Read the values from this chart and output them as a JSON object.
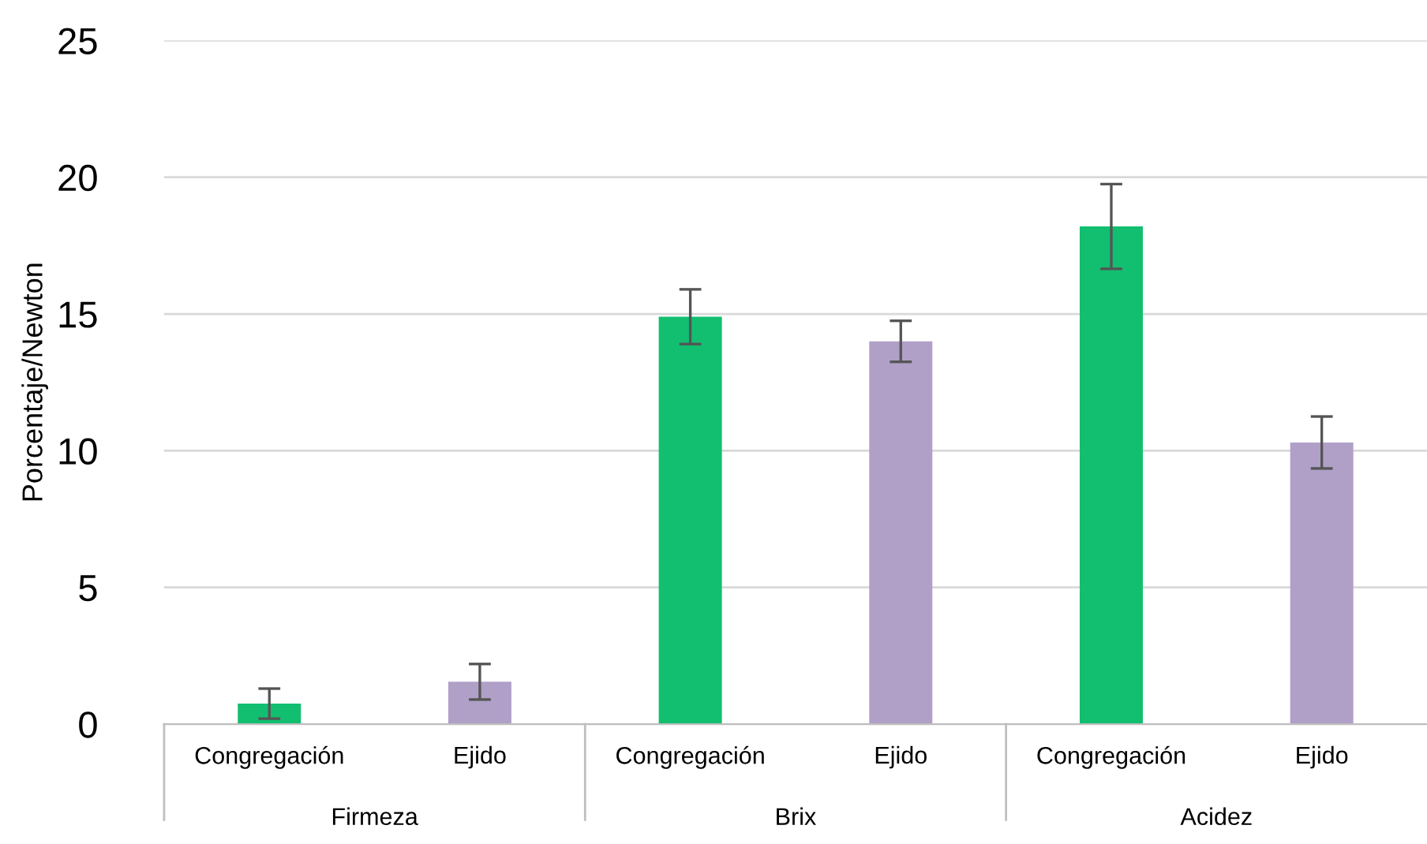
{
  "chart_data": {
    "type": "bar",
    "ylabel": "Porcentaje/Newton",
    "categories": [
      "Congregación",
      "Ejido",
      "Congregación",
      "Ejido",
      "Congregación",
      "Ejido"
    ],
    "values": [
      0.75,
      1.55,
      14.9,
      14.0,
      18.2,
      10.3
    ],
    "errors": [
      0.55,
      0.65,
      1.0,
      0.75,
      1.55,
      0.95
    ],
    "colors": [
      "#12bf70",
      "#b0a0c8",
      "#12bf70",
      "#b0a0c8",
      "#12bf70",
      "#b0a0c8"
    ],
    "annotations": [
      "Firmeza",
      "Brix",
      "Acidez"
    ],
    "ylim": [
      0,
      25
    ],
    "yticks": [
      0,
      5,
      10,
      15,
      20,
      25
    ],
    "grid": "y"
  }
}
